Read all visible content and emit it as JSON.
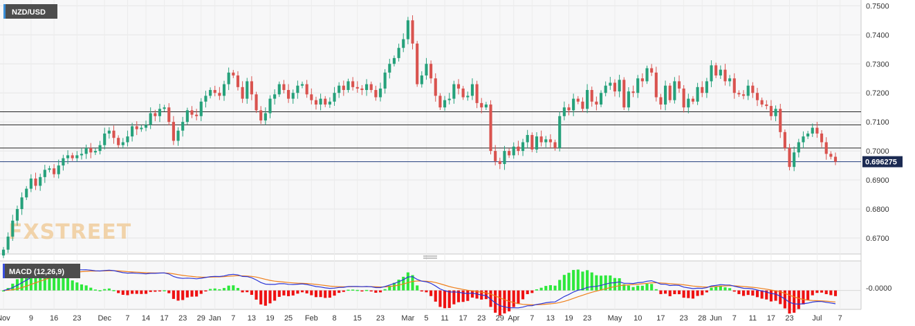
{
  "chart_data": [
    {
      "type": "candlestick",
      "symbol": "NZD/USD",
      "current_price": 0.696275,
      "current_price_label": "0.696275",
      "y_ticks": [
        "0.7500",
        "0.7400",
        "0.7300",
        "0.7200",
        "0.7100",
        "0.7000",
        "0.6900",
        "0.6800",
        "0.6700"
      ],
      "ylim": [
        0.6645,
        0.752
      ],
      "horizontal_levels": [
        0.7135,
        0.709,
        0.701
      ],
      "price_line": 0.6963,
      "x_labels": [
        {
          "label": "Nov",
          "index": 0
        },
        {
          "label": "9",
          "index": 6
        },
        {
          "label": "16",
          "index": 11
        },
        {
          "label": "23",
          "index": 16
        },
        {
          "label": "Dec",
          "index": 22
        },
        {
          "label": "7",
          "index": 27
        },
        {
          "label": "14",
          "index": 31
        },
        {
          "label": "17",
          "index": 35
        },
        {
          "label": "23",
          "index": 39
        },
        {
          "label": "29",
          "index": 43
        },
        {
          "label": "Jan",
          "index": 46
        },
        {
          "label": "7",
          "index": 50
        },
        {
          "label": "13",
          "index": 54
        },
        {
          "label": "19",
          "index": 58
        },
        {
          "label": "25",
          "index": 62
        },
        {
          "label": "Feb",
          "index": 67
        },
        {
          "label": "8",
          "index": 72
        },
        {
          "label": "15",
          "index": 77
        },
        {
          "label": "23",
          "index": 82
        },
        {
          "label": "Mar",
          "index": 88
        },
        {
          "label": "5",
          "index": 92
        },
        {
          "label": "11",
          "index": 96
        },
        {
          "label": "17",
          "index": 100
        },
        {
          "label": "23",
          "index": 104
        },
        {
          "label": "29",
          "index": 108
        },
        {
          "label": "Apr",
          "index": 111
        },
        {
          "label": "7",
          "index": 115
        },
        {
          "label": "13",
          "index": 119
        },
        {
          "label": "19",
          "index": 123
        },
        {
          "label": "23",
          "index": 127
        },
        {
          "label": "May",
          "index": 133
        },
        {
          "label": "10",
          "index": 138
        },
        {
          "label": "17",
          "index": 143
        },
        {
          "label": "23",
          "index": 148
        },
        {
          "label": "28",
          "index": 152
        },
        {
          "label": "Jun",
          "index": 155
        },
        {
          "label": "7",
          "index": 159
        },
        {
          "label": "11",
          "index": 163
        },
        {
          "label": "17",
          "index": 167
        },
        {
          "label": "23",
          "index": 171
        },
        {
          "label": "Jul",
          "index": 177
        },
        {
          "label": "7",
          "index": 182
        }
      ],
      "close": [
        0.666,
        0.6705,
        0.676,
        0.68,
        0.684,
        0.687,
        0.6905,
        0.688,
        0.691,
        0.6935,
        0.694,
        0.692,
        0.695,
        0.6975,
        0.6985,
        0.6975,
        0.6985,
        0.699,
        0.701,
        0.6995,
        0.7,
        0.702,
        0.706,
        0.707,
        0.7045,
        0.702,
        0.703,
        0.705,
        0.7085,
        0.7075,
        0.708,
        0.709,
        0.713,
        0.712,
        0.7145,
        0.715,
        0.71,
        0.7035,
        0.707,
        0.71,
        0.714,
        0.7125,
        0.712,
        0.717,
        0.719,
        0.721,
        0.72,
        0.719,
        0.723,
        0.727,
        0.726,
        0.722,
        0.718,
        0.724,
        0.7195,
        0.714,
        0.7105,
        0.713,
        0.718,
        0.7195,
        0.723,
        0.721,
        0.718,
        0.72,
        0.7225,
        0.723,
        0.7195,
        0.7175,
        0.716,
        0.718,
        0.716,
        0.717,
        0.72,
        0.7225,
        0.721,
        0.724,
        0.722,
        0.7215,
        0.721,
        0.723,
        0.721,
        0.7185,
        0.7215,
        0.727,
        0.73,
        0.732,
        0.7355,
        0.7385,
        0.745,
        0.737,
        0.723,
        0.726,
        0.73,
        0.725,
        0.719,
        0.715,
        0.7175,
        0.718,
        0.723,
        0.7215,
        0.7185,
        0.719,
        0.723,
        0.7165,
        0.715,
        0.716,
        0.7,
        0.6965,
        0.6955,
        0.7,
        0.6985,
        0.7015,
        0.7,
        0.703,
        0.7055,
        0.7005,
        0.705,
        0.703,
        0.704,
        0.703,
        0.701,
        0.712,
        0.715,
        0.714,
        0.718,
        0.717,
        0.7145,
        0.721,
        0.717,
        0.716,
        0.72,
        0.7225,
        0.7235,
        0.7205,
        0.7245,
        0.715,
        0.7205,
        0.72,
        0.725,
        0.724,
        0.7285,
        0.727,
        0.7185,
        0.716,
        0.7225,
        0.7175,
        0.724,
        0.7215,
        0.715,
        0.718,
        0.717,
        0.722,
        0.72,
        0.724,
        0.7295,
        0.726,
        0.728,
        0.724,
        0.725,
        0.72,
        0.7195,
        0.719,
        0.7225,
        0.72,
        0.7175,
        0.716,
        0.7155,
        0.712,
        0.7145,
        0.7065,
        0.701,
        0.6945,
        0.6995,
        0.703,
        0.705,
        0.706,
        0.708,
        0.706,
        0.703,
        0.699,
        0.698,
        0.6963
      ],
      "macd": {
        "label": "MACD (12,26,9)",
        "zero_label": "-0.0000",
        "ylim": [
          -0.0072,
          0.0112
        ]
      },
      "watermark": "FXSTREET",
      "colors": {
        "up": "#26a17b",
        "down": "#d9534f",
        "macd_line": "#2b35d6",
        "signal_line": "#ef7f1a",
        "hist_up": "#2ee83c",
        "hist_down": "#ee1111",
        "price_tag": "#1b2a52"
      }
    }
  ]
}
